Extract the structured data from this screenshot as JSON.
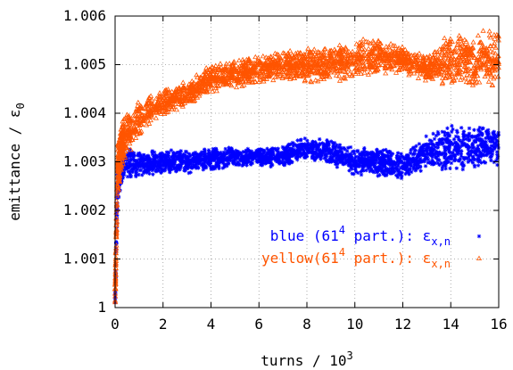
{
  "chart_data": {
    "type": "scatter",
    "xlabel": "turns / 10",
    "xlabel_sup": "3",
    "ylabel": "emittance / ε",
    "ylabel_sub": "0",
    "xlim": [
      0,
      16
    ],
    "ylim": [
      1.0,
      1.006
    ],
    "x_ticks": [
      0,
      2,
      4,
      6,
      8,
      10,
      12,
      14,
      16
    ],
    "x_tick_labels": [
      "0",
      "2",
      "4",
      "6",
      "8",
      "10",
      "12",
      "14",
      "16"
    ],
    "y_ticks": [
      1.0,
      1.001,
      1.002,
      1.003,
      1.004,
      1.005,
      1.006
    ],
    "y_tick_labels": [
      "1",
      "1.001",
      "1.002",
      "1.003",
      "1.004",
      "1.005",
      "1.006"
    ],
    "grid": true,
    "legend_position": "bottom-right",
    "series": [
      {
        "name": "blue",
        "legend": {
          "prefix": "blue  (61",
          "sup": "4",
          "mid": " part.): ε",
          "sub": "x,n"
        },
        "color": "#0000ff",
        "marker": "star",
        "trend_x": [
          0,
          0.1,
          0.3,
          1,
          2,
          3,
          4,
          5,
          6,
          7,
          8,
          9,
          10,
          11,
          12,
          13,
          14,
          15,
          16
        ],
        "trend_y": [
          1.0002,
          1.0025,
          1.003,
          1.00295,
          1.003,
          1.003,
          1.00305,
          1.0031,
          1.0031,
          1.0031,
          1.0033,
          1.0032,
          1.003,
          1.003,
          1.0029,
          1.0032,
          1.0033,
          1.0033,
          1.0033
        ],
        "spread": [
          0.0003,
          0.0004,
          0.0004,
          0.0003,
          0.00025,
          0.00025,
          0.00025,
          0.0002,
          0.0002,
          0.00025,
          0.00025,
          0.00025,
          0.0003,
          0.0003,
          0.0003,
          0.00035,
          0.0005,
          0.0005,
          0.0004
        ]
      },
      {
        "name": "yellow",
        "legend": {
          "prefix": "yellow(61",
          "sup": "4",
          "mid": " part.): ε",
          "sub": "x,n"
        },
        "color": "#ff5500",
        "marker": "triangle",
        "trend_x": [
          0,
          0.1,
          0.3,
          1,
          2,
          3,
          4,
          5,
          6,
          7,
          8,
          9,
          10,
          11,
          12,
          13,
          14,
          15,
          16
        ],
        "trend_y": [
          1.0002,
          1.0028,
          1.0034,
          1.0039,
          1.0042,
          1.0044,
          1.0047,
          1.0048,
          1.0049,
          1.005,
          1.005,
          1.005,
          1.0051,
          1.0052,
          1.0051,
          1.0049,
          1.0051,
          1.0051,
          1.0051
        ],
        "spread": [
          0.0003,
          0.0006,
          0.0005,
          0.0004,
          0.0003,
          0.0003,
          0.0003,
          0.0003,
          0.0003,
          0.0003,
          0.0004,
          0.0004,
          0.0004,
          0.0004,
          0.0003,
          0.0003,
          0.0006,
          0.0006,
          0.0006
        ]
      }
    ]
  }
}
